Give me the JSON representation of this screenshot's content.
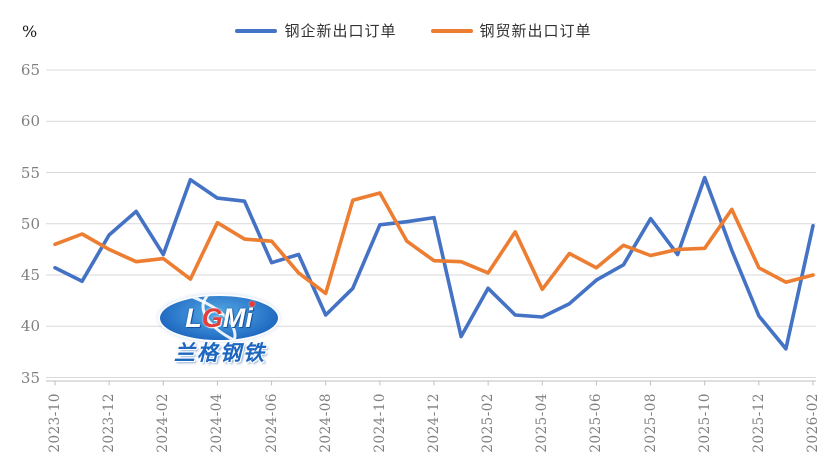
{
  "legend": {
    "items": [
      {
        "label": "钢企新出口订单",
        "color": "#4472C4"
      },
      {
        "label": "钢贸新出口订单",
        "color": "#ED7D31"
      }
    ]
  },
  "watermark": {
    "letters": [
      "L",
      "G",
      "M",
      "i"
    ],
    "sub_text": "兰格钢铁",
    "ellipse_color": "#1663BE",
    "accent_color": "#E53935"
  },
  "colors": {
    "gridline": "#D9D9D9",
    "axis_line": "#BFBFBF",
    "tick_label": "#808080",
    "legend_text": "#333333",
    "background": "#FFFFFF"
  },
  "chart_data": {
    "type": "line",
    "title": "",
    "ylabel": "%",
    "ylim": [
      35,
      65
    ],
    "yticks": [
      65,
      60,
      55,
      50,
      45,
      40,
      35
    ],
    "grid": "horizontal",
    "legend_position": "top-center",
    "x": [
      "2023-10",
      "2023-11",
      "2023-12",
      "2024-01",
      "2024-02",
      "2024-03",
      "2024-04",
      "2024-05",
      "2024-06",
      "2024-07",
      "2024-08",
      "2024-09",
      "2024-10",
      "2024-11",
      "2024-12",
      "2025-01",
      "2025-02",
      "2025-03",
      "2025-04",
      "2025-05",
      "2025-06",
      "2025-07",
      "2025-08",
      "2025-09",
      "2025-10",
      "2025-11",
      "2025-12",
      "2026-01",
      "2026-02"
    ],
    "x_tick_labels": [
      "2023-10",
      "2023-12",
      "2024-02",
      "2024-04",
      "2024-06",
      "2024-08",
      "2024-10",
      "2024-12",
      "2025-02",
      "2025-04",
      "2025-06",
      "2025-08",
      "2025-10",
      "2025-12",
      "2026-02"
    ],
    "series": [
      {
        "name": "钢企新出口订单",
        "color": "#4472C4",
        "values": [
          45.7,
          44.4,
          48.9,
          51.2,
          47.0,
          54.3,
          52.5,
          52.2,
          46.2,
          47.0,
          41.1,
          43.7,
          49.9,
          50.2,
          50.6,
          39.0,
          43.7,
          41.1,
          40.9,
          42.2,
          44.5,
          46.0,
          50.5,
          47.0,
          54.5,
          47.4,
          41.0,
          37.8,
          49.8
        ]
      },
      {
        "name": "钢贸新出口订单",
        "color": "#ED7D31",
        "values": [
          48.0,
          49.0,
          47.5,
          46.3,
          46.6,
          44.6,
          50.1,
          48.5,
          48.3,
          45.2,
          43.2,
          52.3,
          53.0,
          48.3,
          46.4,
          46.3,
          45.2,
          49.2,
          43.6,
          47.1,
          45.7,
          47.9,
          46.9,
          47.5,
          47.6,
          51.4,
          45.7,
          44.3,
          45.0
        ]
      }
    ]
  }
}
